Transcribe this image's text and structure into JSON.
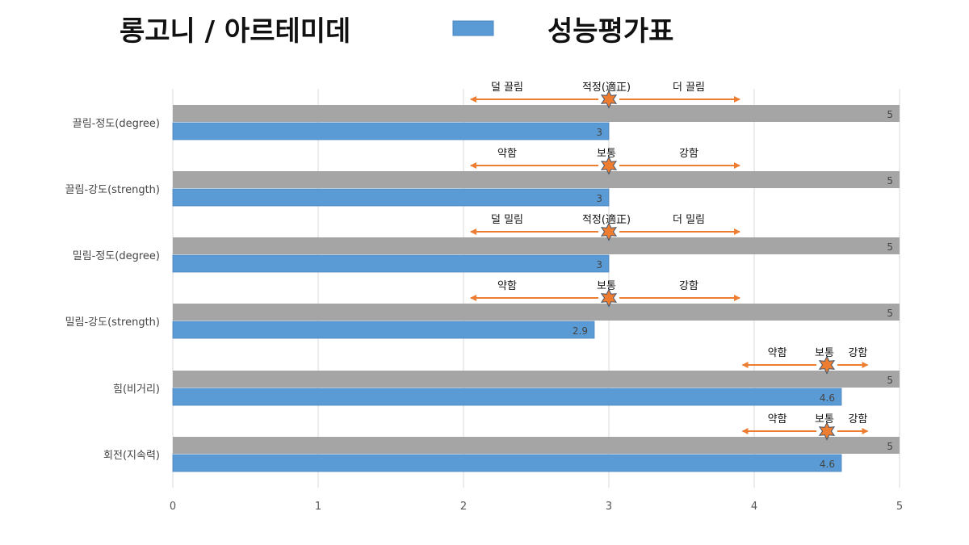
{
  "header": {
    "left_title": "롱고니 / 아르테미데",
    "right_title": "성능평가표"
  },
  "colors": {
    "gray_bar": "#a5a5a5",
    "blue_bar": "#5b9bd5",
    "blue_bar_border": "#4a86c0",
    "arrow": "#ed7d31",
    "star_fill": "#ed7d31",
    "star_stroke": "#44546a",
    "grid": "#d9d9d9"
  },
  "chart_data": {
    "type": "bar",
    "orientation": "horizontal",
    "xlim": [
      0,
      5
    ],
    "x_ticks": [
      "0",
      "1",
      "2",
      "3",
      "4",
      "5"
    ],
    "grid": true,
    "legend": "top",
    "categories": [
      "끌림-정도(degree)",
      "끌림-강도(strength)",
      "밀림-정도(degree)",
      "밀림-강도(strength)",
      "힘(비거리)",
      "회전(지속력)"
    ],
    "series": [
      {
        "color": "gray",
        "values": [
          5,
          5,
          5,
          5,
          5,
          5
        ],
        "value_labels": [
          "5",
          "5",
          "5",
          "5",
          "5",
          "5"
        ]
      },
      {
        "color": "blue",
        "values": [
          3,
          3,
          3,
          2.9,
          4.6,
          4.6
        ],
        "value_labels": [
          "3",
          "3",
          "3",
          "2.9",
          "4.6",
          "4.6"
        ]
      }
    ],
    "annotations": [
      {
        "left": "덜 끌림",
        "center": "적정(適正)",
        "right": "더 끌림",
        "star_at": 3,
        "arrow_from": 2.05,
        "arrow_to": 3.9
      },
      {
        "left": "약함",
        "center": "보통",
        "right": "강함",
        "star_at": 3,
        "arrow_from": 2.05,
        "arrow_to": 3.9
      },
      {
        "left": "덜 밀림",
        "center": "적정(適正)",
        "right": "더 밀림",
        "star_at": 3,
        "arrow_from": 2.05,
        "arrow_to": 3.9
      },
      {
        "left": "약함",
        "center": "보통",
        "right": "강함",
        "star_at": 3,
        "arrow_from": 2.05,
        "arrow_to": 3.9
      },
      {
        "left": "약함",
        "center": "보통",
        "right": "강함",
        "star_at": 4.5,
        "arrow_from": 3.92,
        "arrow_to": 4.78
      },
      {
        "left": "약함",
        "center": "보통",
        "right": "강함",
        "star_at": 4.5,
        "arrow_from": 3.92,
        "arrow_to": 4.78
      }
    ]
  }
}
